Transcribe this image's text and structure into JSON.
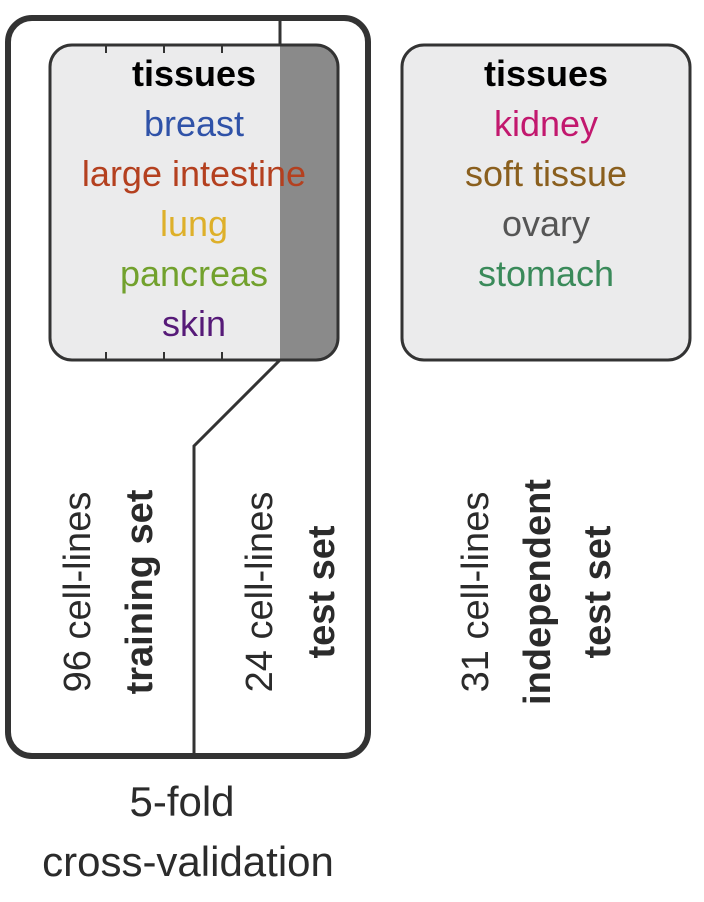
{
  "colors": {
    "outline": "#333333",
    "box_fill": "#ebebec",
    "test_fold_fill": "#8a8a8a",
    "text": "#2b2b2b"
  },
  "left_panel": {
    "tissues_header": "tissues",
    "tissues": [
      {
        "name": "breast",
        "color": "#2f52a8"
      },
      {
        "name": "large intestine",
        "color": "#b4401f"
      },
      {
        "name": "lung",
        "color": "#deb02a"
      },
      {
        "name": "pancreas",
        "color": "#72a12d"
      },
      {
        "name": "skin",
        "color": "#561a78"
      }
    ],
    "training": {
      "count_label": "96 cell-lines",
      "set_label": "training set"
    },
    "test": {
      "count_label": "24 cell-lines",
      "set_label": "test set"
    },
    "caption_line1": "5-fold",
    "caption_line2": "cross-validation"
  },
  "right_panel": {
    "tissues_header": "tissues",
    "tissues": [
      {
        "name": "kidney",
        "color": "#c2186e"
      },
      {
        "name": "soft tissue",
        "color": "#8a5f1e"
      },
      {
        "name": "ovary",
        "color": "#555555"
      },
      {
        "name": "stomach",
        "color": "#3a8a5a"
      }
    ],
    "count_label": "31 cell-lines",
    "set_label_line1": "independent",
    "set_label_line2": "test set"
  }
}
